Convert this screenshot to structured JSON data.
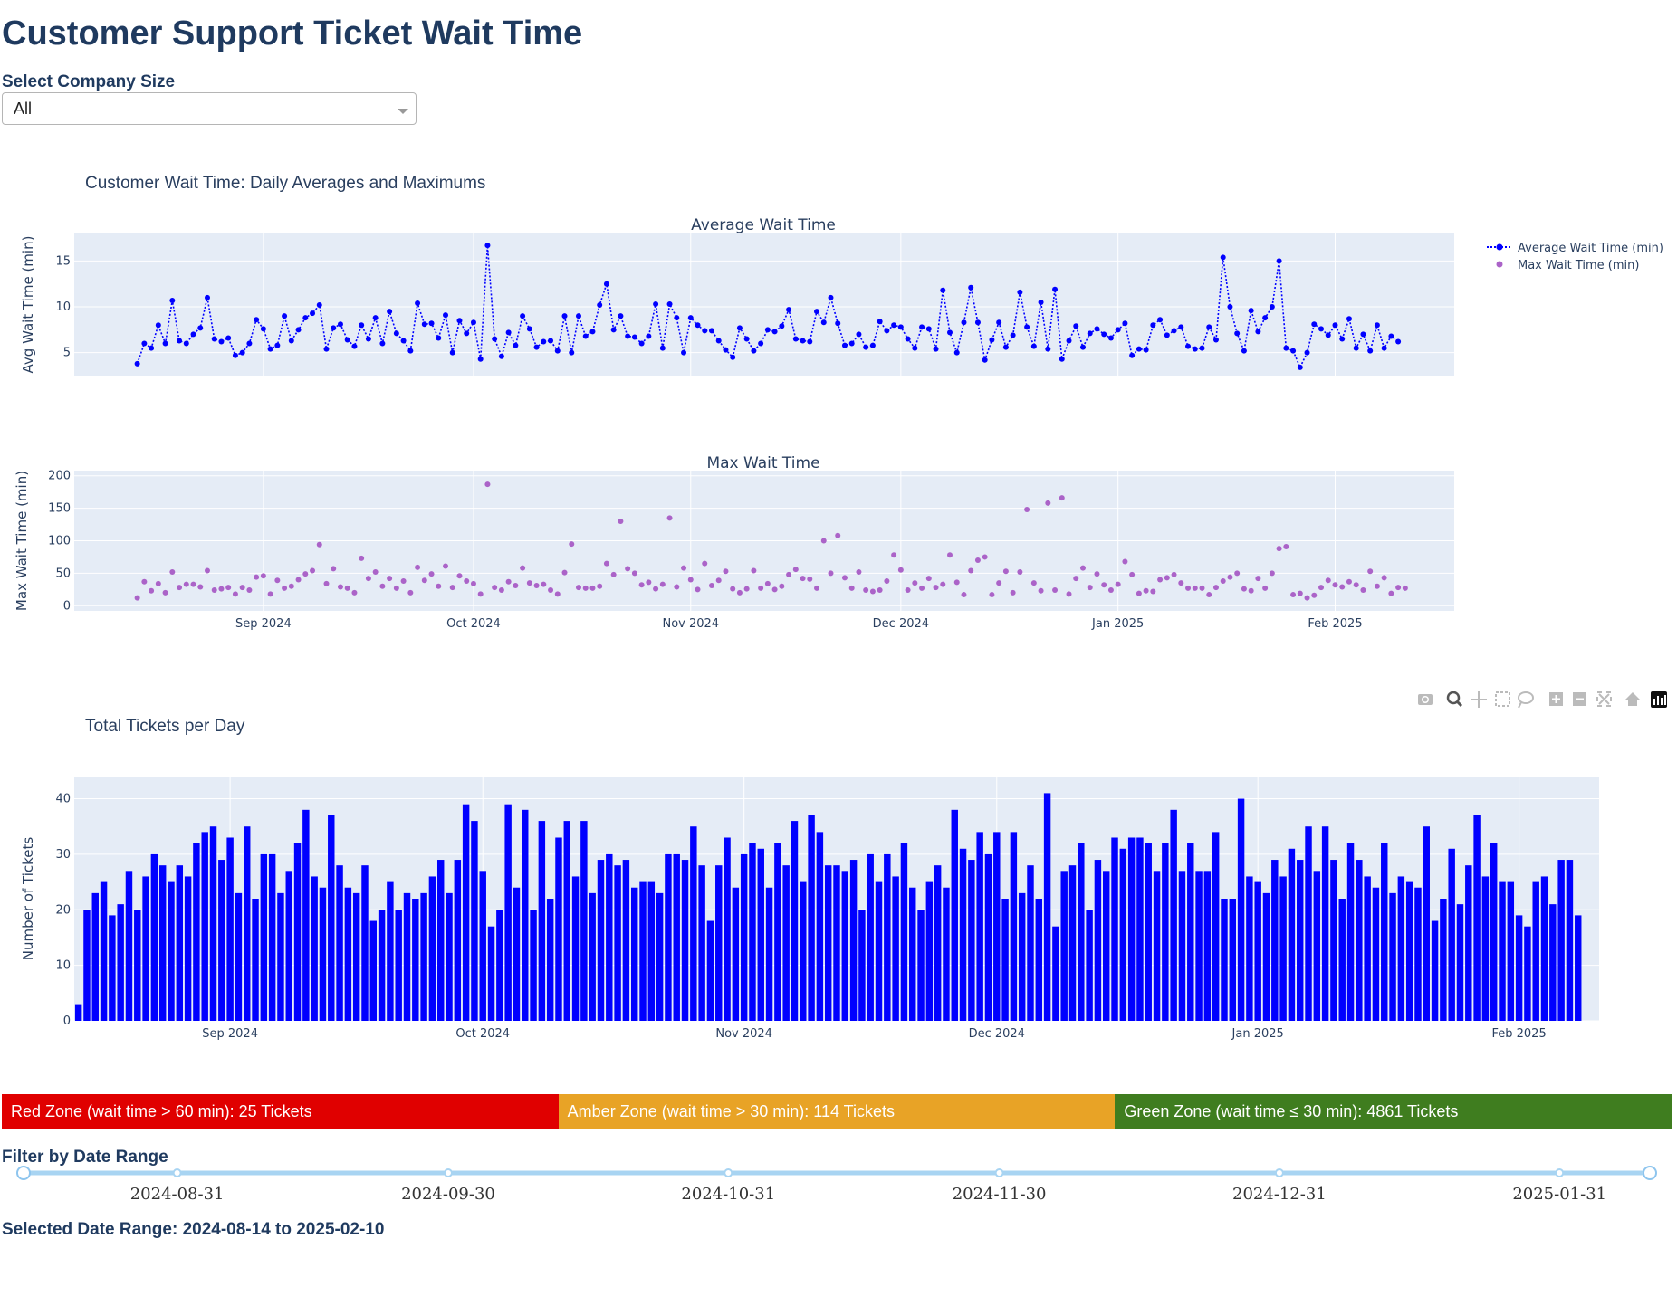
{
  "page": {
    "title": "Customer Support Ticket Wait Time",
    "company_label": "Select Company Size",
    "company_value": "All",
    "filter_label": "Filter by Date Range",
    "range_text": "Selected Date Range: 2024-08-14 to 2025-02-10"
  },
  "zones": [
    {
      "label": "Red Zone (wait time > 60 min): 25 Tickets",
      "color": "#e00000"
    },
    {
      "label": "Amber Zone (wait time > 30 min): 114 Tickets",
      "color": "#e8a326"
    },
    {
      "label": "Green Zone (wait time ≤ 30 min): 4861 Tickets",
      "color": "#3f7d1f"
    }
  ],
  "slider": {
    "marks": [
      "2024-08-31",
      "2024-09-30",
      "2024-10-31",
      "2024-11-30",
      "2024-12-31",
      "2025-01-31"
    ],
    "start": "2024-08-14",
    "end": "2025-02-10"
  },
  "chart_data": [
    {
      "type": "line",
      "title": "Customer Wait Time: Daily Averages and Maximums",
      "subtitle": "Average Wait Time",
      "ylabel": "Avg Wait Time (min)",
      "y_ticks": [
        5,
        10,
        15
      ],
      "ylim": [
        2.5,
        18
      ],
      "x_start": "2024-08-14",
      "xlim": [
        "2024-08-05",
        "2025-02-18"
      ],
      "x_ticks": [
        "Sep 2024",
        "Oct 2024",
        "Nov 2024",
        "Dec 2024",
        "Jan 2025",
        "Feb 2025"
      ],
      "legend": [
        "Average Wait Time (min)",
        "Max Wait Time (min)"
      ],
      "legend_position": "top-right",
      "series": [
        {
          "name": "Average Wait Time (min)",
          "color": "#0000ff",
          "values": [
            3.8,
            6.0,
            5.5,
            8.0,
            6.0,
            10.7,
            6.3,
            6.0,
            7.0,
            7.7,
            11.0,
            6.5,
            6.2,
            6.6,
            4.7,
            5.0,
            6.0,
            8.6,
            7.6,
            5.4,
            5.8,
            9.0,
            6.3,
            7.5,
            8.8,
            9.3,
            10.2,
            5.4,
            7.7,
            8.1,
            6.4,
            5.7,
            8.0,
            6.5,
            8.8,
            6.0,
            9.5,
            7.1,
            6.3,
            5.2,
            10.4,
            8.1,
            8.2,
            6.6,
            9.1,
            5.0,
            8.5,
            7.1,
            8.3,
            4.3,
            16.7,
            6.5,
            4.6,
            7.2,
            5.8,
            9.0,
            7.6,
            5.6,
            6.2,
            6.3,
            5.2,
            9.0,
            5.0,
            9.0,
            6.8,
            7.3,
            10.2,
            12.5,
            7.5,
            9.0,
            6.8,
            6.7,
            6.0,
            6.8,
            10.3,
            5.5,
            10.3,
            8.8,
            5.0,
            8.8,
            8.0,
            7.4,
            7.4,
            6.3,
            5.3,
            4.5,
            7.7,
            6.5,
            5.2,
            6.0,
            7.5,
            7.3,
            7.9,
            9.7,
            6.5,
            6.3,
            6.2,
            9.5,
            8.3,
            11.0,
            8.2,
            5.8,
            6.0,
            7.0,
            5.6,
            5.8,
            8.4,
            7.4,
            8.0,
            7.8,
            6.5,
            5.5,
            7.8,
            7.6,
            5.4,
            11.8,
            7.2,
            5.0,
            8.3,
            12.1,
            8.3,
            4.2,
            6.4,
            8.3,
            5.6,
            6.9,
            11.6,
            7.8,
            5.7,
            10.5,
            5.4,
            11.9,
            4.3,
            6.3,
            7.9,
            5.6,
            7.1,
            7.6,
            7.0,
            6.6,
            7.5,
            8.2,
            4.7,
            5.4,
            5.3,
            8.0,
            8.6,
            6.9,
            7.4,
            7.8,
            5.7,
            5.4,
            5.5,
            7.8,
            6.4,
            15.4,
            10.0,
            7.1,
            5.2,
            9.6,
            7.3,
            8.8,
            10.0,
            15.0,
            5.5,
            5.2,
            3.4,
            5.0,
            8.1,
            7.6,
            6.9,
            8.0,
            6.5,
            8.7,
            5.5,
            7.0,
            5.2,
            8.0,
            5.5,
            6.8,
            6.2
          ]
        }
      ]
    },
    {
      "type": "scatter",
      "subtitle": "Max Wait Time",
      "ylabel": "Max Wait Time (min)",
      "y_ticks": [
        0,
        50,
        100,
        150,
        200
      ],
      "ylim": [
        -8,
        208
      ],
      "x_start": "2024-08-14",
      "xlim": [
        "2024-08-05",
        "2025-02-18"
      ],
      "x_ticks": [
        "Sep 2024",
        "Oct 2024",
        "Nov 2024",
        "Dec 2024",
        "Jan 2025",
        "Feb 2025"
      ],
      "series": [
        {
          "name": "Max Wait Time (min)",
          "color": "#ab63c8",
          "values": [
            12,
            37,
            23,
            34,
            20,
            52,
            28,
            33,
            33,
            29,
            54,
            24,
            26,
            28,
            18,
            28,
            24,
            44,
            46,
            18,
            39,
            27,
            30,
            40,
            49,
            54,
            94,
            34,
            57,
            29,
            27,
            20,
            73,
            42,
            52,
            30,
            42,
            27,
            38,
            20,
            59,
            39,
            49,
            30,
            61,
            28,
            46,
            38,
            34,
            18,
            187,
            28,
            24,
            37,
            31,
            58,
            35,
            31,
            33,
            24,
            18,
            51,
            95,
            28,
            27,
            27,
            30,
            65,
            48,
            130,
            57,
            50,
            32,
            36,
            26,
            33,
            135,
            29,
            58,
            40,
            25,
            65,
            31,
            39,
            53,
            26,
            20,
            26,
            54,
            27,
            34,
            25,
            30,
            48,
            56,
            42,
            41,
            27,
            100,
            50,
            108,
            43,
            27,
            52,
            24,
            22,
            24,
            38,
            78,
            55,
            24,
            35,
            27,
            42,
            28,
            33,
            78,
            36,
            17,
            54,
            70,
            75,
            17,
            35,
            53,
            20,
            52,
            148,
            35,
            23,
            158,
            24,
            166,
            18,
            42,
            58,
            28,
            49,
            32,
            24,
            33,
            68,
            48,
            19,
            23,
            22,
            40,
            43,
            48,
            35,
            27,
            27,
            27,
            17,
            28,
            38,
            44,
            50,
            26,
            23,
            42,
            27,
            50,
            88,
            91,
            17,
            19,
            12,
            16,
            28,
            39,
            32,
            29,
            37,
            32,
            24,
            53,
            30,
            43,
            19,
            28,
            27
          ]
        }
      ]
    },
    {
      "type": "bar",
      "title": "Total Tickets per Day",
      "ylabel": "Number of Tickets",
      "y_ticks": [
        0,
        10,
        20,
        30,
        40
      ],
      "ylim": [
        0,
        44
      ],
      "x_start": "2024-08-14",
      "xlim": [
        "2024-08-13.5",
        "2025-02-10.5"
      ],
      "x_ticks": [
        "Sep 2024",
        "Oct 2024",
        "Nov 2024",
        "Dec 2024",
        "Jan 2025",
        "Feb 2025"
      ],
      "series": [
        {
          "name": "Tickets",
          "color": "#0000ff",
          "values": [
            3,
            20,
            23,
            25,
            19,
            21,
            27,
            20,
            26,
            30,
            28,
            25,
            28,
            26,
            32,
            34,
            35,
            29,
            33,
            23,
            35,
            22,
            30,
            30,
            23,
            27,
            32,
            38,
            26,
            24,
            37,
            28,
            24,
            23,
            28,
            18,
            20,
            25,
            20,
            23,
            22,
            23,
            26,
            29,
            23,
            29,
            39,
            36,
            27,
            17,
            20,
            39,
            24,
            38,
            20,
            36,
            22,
            33,
            36,
            26,
            36,
            23,
            29,
            30,
            28,
            29,
            24,
            25,
            25,
            23,
            30,
            30,
            29,
            35,
            28,
            18,
            28,
            33,
            24,
            30,
            32,
            31,
            24,
            32,
            28,
            36,
            25,
            37,
            34,
            28,
            28,
            27,
            29,
            20,
            30,
            25,
            30,
            26,
            32,
            24,
            20,
            25,
            28,
            24,
            38,
            31,
            29,
            34,
            30,
            34,
            22,
            34,
            23,
            28,
            22,
            41,
            17,
            27,
            28,
            32,
            20,
            29,
            27,
            33,
            31,
            33,
            33,
            32,
            27,
            32,
            38,
            27,
            32,
            27,
            27,
            34,
            22,
            22,
            40,
            26,
            25,
            23,
            29,
            26,
            31,
            29,
            35,
            27,
            35,
            29,
            22,
            32,
            29,
            26,
            24,
            32,
            23,
            26,
            25,
            24,
            35,
            18,
            22,
            31,
            21,
            28,
            37,
            26,
            32,
            25,
            25,
            19,
            17,
            25,
            26,
            21,
            29,
            29,
            19
          ]
        }
      ]
    }
  ]
}
